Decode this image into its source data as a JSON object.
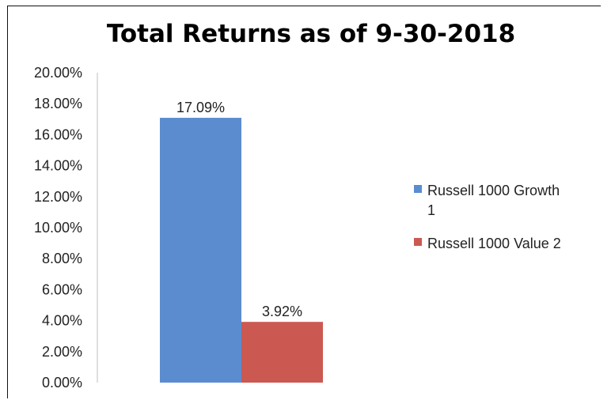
{
  "chart_data": {
    "type": "bar",
    "title": "Total Returns as of 9-30-2018",
    "xlabel": "",
    "ylabel": "",
    "ylim": [
      0,
      20
    ],
    "yticks": [
      0,
      2,
      4,
      6,
      8,
      10,
      12,
      14,
      16,
      18,
      20
    ],
    "ytick_labels": [
      "0.00%",
      "2.00%",
      "4.00%",
      "6.00%",
      "8.00%",
      "10.00%",
      "12.00%",
      "14.00%",
      "16.00%",
      "18.00%",
      "20.00%"
    ],
    "grid": false,
    "legend_position": "right",
    "series": [
      {
        "name": "Russell 1000 Growth 1",
        "legend_lines": [
          "Russell 1000 Growth",
          "1"
        ],
        "value": 17.09,
        "label": "17.09%",
        "color": "#5b8ccf"
      },
      {
        "name": "Russell 1000 Value 2",
        "legend_lines": [
          "Russell 1000 Value 2"
        ],
        "value": 3.92,
        "label": "3.92%",
        "color": "#cc5852"
      }
    ]
  }
}
